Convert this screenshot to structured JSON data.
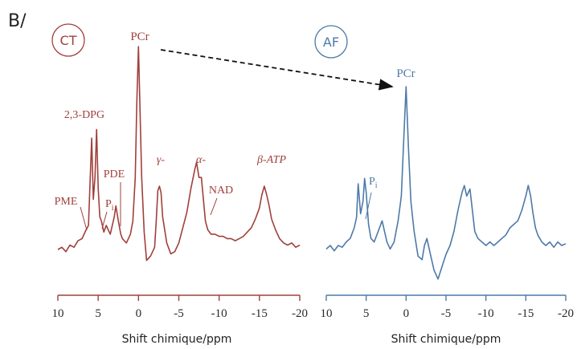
{
  "figure_label": "B/",
  "arrow": {
    "from": "CT",
    "to": "AF"
  },
  "chart_data": [
    {
      "type": "line",
      "badge": "CT",
      "color": "#a0403b",
      "xlabel": "Shift chimique/ppm",
      "ylabel": "",
      "xlim": [
        10,
        -20
      ],
      "x_reversed": true,
      "xticks": [
        10,
        5,
        0,
        -5,
        -10,
        -15,
        -20
      ],
      "xtick_labels": [
        "10",
        "5",
        "0",
        "-5",
        "-10",
        "-15",
        "-20"
      ],
      "grid": false,
      "series": [
        {
          "x": [
            10,
            9.5,
            9,
            8.5,
            8,
            7.5,
            7,
            6.5,
            6.2,
            6,
            5.8,
            5.6,
            5.4,
            5.2,
            5,
            4.8,
            4.6,
            4.3,
            4,
            3.5,
            3,
            2.8,
            2.5,
            2.2,
            2,
            1.5,
            1,
            0.7,
            0.4,
            0.2,
            0,
            -0.2,
            -0.4,
            -0.7,
            -1,
            -1.5,
            -2,
            -2.2,
            -2.4,
            -2.6,
            -2.8,
            -3,
            -3.5,
            -4,
            -4.5,
            -5,
            -5.5,
            -6,
            -6.5,
            -7,
            -7.2,
            -7.5,
            -7.8,
            -8,
            -8.3,
            -8.6,
            -9,
            -9.5,
            -10,
            -10.5,
            -11,
            -11.5,
            -12,
            -12.5,
            -13,
            -13.5,
            -14,
            -14.5,
            -15,
            -15.3,
            -15.6,
            -15.9,
            -16.2,
            -16.5,
            -17,
            -17.5,
            -18,
            -18.5,
            -19,
            -19.5,
            -20
          ],
          "y": [
            0.07,
            0.08,
            0.06,
            0.09,
            0.08,
            0.11,
            0.12,
            0.16,
            0.18,
            0.38,
            0.58,
            0.3,
            0.4,
            0.62,
            0.35,
            0.22,
            0.2,
            0.15,
            0.18,
            0.14,
            0.22,
            0.27,
            0.2,
            0.14,
            0.12,
            0.1,
            0.14,
            0.2,
            0.4,
            0.75,
            1.0,
            0.7,
            0.4,
            0.15,
            0.02,
            0.04,
            0.08,
            0.2,
            0.34,
            0.36,
            0.33,
            0.22,
            0.1,
            0.05,
            0.06,
            0.1,
            0.17,
            0.24,
            0.35,
            0.44,
            0.47,
            0.4,
            0.4,
            0.32,
            0.2,
            0.16,
            0.14,
            0.14,
            0.13,
            0.13,
            0.12,
            0.12,
            0.11,
            0.12,
            0.13,
            0.15,
            0.17,
            0.21,
            0.26,
            0.32,
            0.36,
            0.32,
            0.27,
            0.21,
            0.16,
            0.12,
            0.1,
            0.09,
            0.1,
            0.08,
            0.09
          ]
        }
      ],
      "annotations": [
        {
          "text": "PCr",
          "x": 0
        },
        {
          "text": "2,3-DPG",
          "x": 6
        },
        {
          "text": "PDE",
          "x": 3
        },
        {
          "text": "PME",
          "x": 7
        },
        {
          "text": "P",
          "sub": "i",
          "x": 5
        },
        {
          "text": "γ-",
          "x": -2.5
        },
        {
          "text": "α-",
          "x": -7.5
        },
        {
          "text": "NAD",
          "x": -8
        },
        {
          "text": "β-ATP",
          "x": -16
        }
      ]
    },
    {
      "type": "line",
      "badge": "AF",
      "color": "#4d7aa8",
      "xlabel": "Shift chimique/ppm",
      "ylabel": "",
      "xlim": [
        10,
        -20
      ],
      "x_reversed": true,
      "xticks": [
        10,
        5,
        0,
        -5,
        -10,
        -15,
        -20
      ],
      "xtick_labels": [
        "10",
        "5",
        "0",
        "-5",
        "-10",
        "-15",
        "-20"
      ],
      "grid": false,
      "series": [
        {
          "x": [
            10,
            9.5,
            9,
            8.5,
            8,
            7.5,
            7,
            6.5,
            6.2,
            6,
            5.7,
            5.4,
            5.2,
            5,
            4.7,
            4.4,
            4,
            3.5,
            3,
            2.7,
            2.4,
            2,
            1.5,
            1,
            0.6,
            0.3,
            0,
            -0.3,
            -0.6,
            -1,
            -1.5,
            -2,
            -2.3,
            -2.6,
            -3,
            -3.5,
            -4,
            -4.5,
            -5,
            -5.5,
            -6,
            -6.5,
            -7,
            -7.3,
            -7.6,
            -8,
            -8.3,
            -8.6,
            -9,
            -9.5,
            -10,
            -10.5,
            -11,
            -11.5,
            -12,
            -12.5,
            -13,
            -13.5,
            -14,
            -14.5,
            -15,
            -15.3,
            -15.6,
            -15.9,
            -16.2,
            -16.5,
            -17,
            -17.5,
            -18,
            -18.5,
            -19,
            -19.5,
            -20
          ],
          "y": [
            0.08,
            0.1,
            0.07,
            0.1,
            0.09,
            0.12,
            0.14,
            0.2,
            0.26,
            0.45,
            0.28,
            0.35,
            0.48,
            0.4,
            0.22,
            0.14,
            0.12,
            0.18,
            0.24,
            0.18,
            0.12,
            0.08,
            0.12,
            0.24,
            0.38,
            0.7,
            1.0,
            0.65,
            0.35,
            0.18,
            0.04,
            0.02,
            0.1,
            0.14,
            0.06,
            -0.04,
            -0.09,
            -0.02,
            0.05,
            0.1,
            0.18,
            0.3,
            0.4,
            0.44,
            0.38,
            0.42,
            0.3,
            0.18,
            0.14,
            0.12,
            0.1,
            0.12,
            0.1,
            0.12,
            0.14,
            0.16,
            0.2,
            0.22,
            0.24,
            0.3,
            0.38,
            0.44,
            0.38,
            0.28,
            0.2,
            0.16,
            0.12,
            0.1,
            0.12,
            0.09,
            0.12,
            0.1,
            0.11
          ]
        }
      ],
      "annotations": [
        {
          "text": "PCr",
          "x": 0
        },
        {
          "text": "P",
          "sub": "i",
          "x": 5
        }
      ]
    }
  ]
}
